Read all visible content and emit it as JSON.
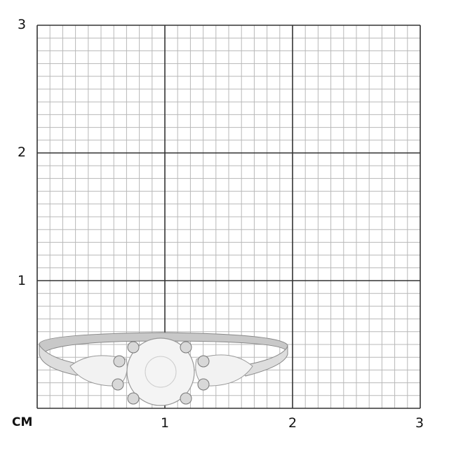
{
  "scale": {
    "unit": "CM",
    "x_labels": [
      "1",
      "2",
      "3"
    ],
    "y_labels": [
      "1",
      "2",
      "3"
    ],
    "range_cm": [
      0,
      3
    ],
    "minor_divisions_per_cm": 10
  },
  "colors": {
    "major_line": "#333333",
    "minor_line": "#b8b8b8",
    "ring_metal": "#c8c8c8"
  },
  "product": {
    "icon": "three-stone-ring-image",
    "width_cm": 1.96
  }
}
